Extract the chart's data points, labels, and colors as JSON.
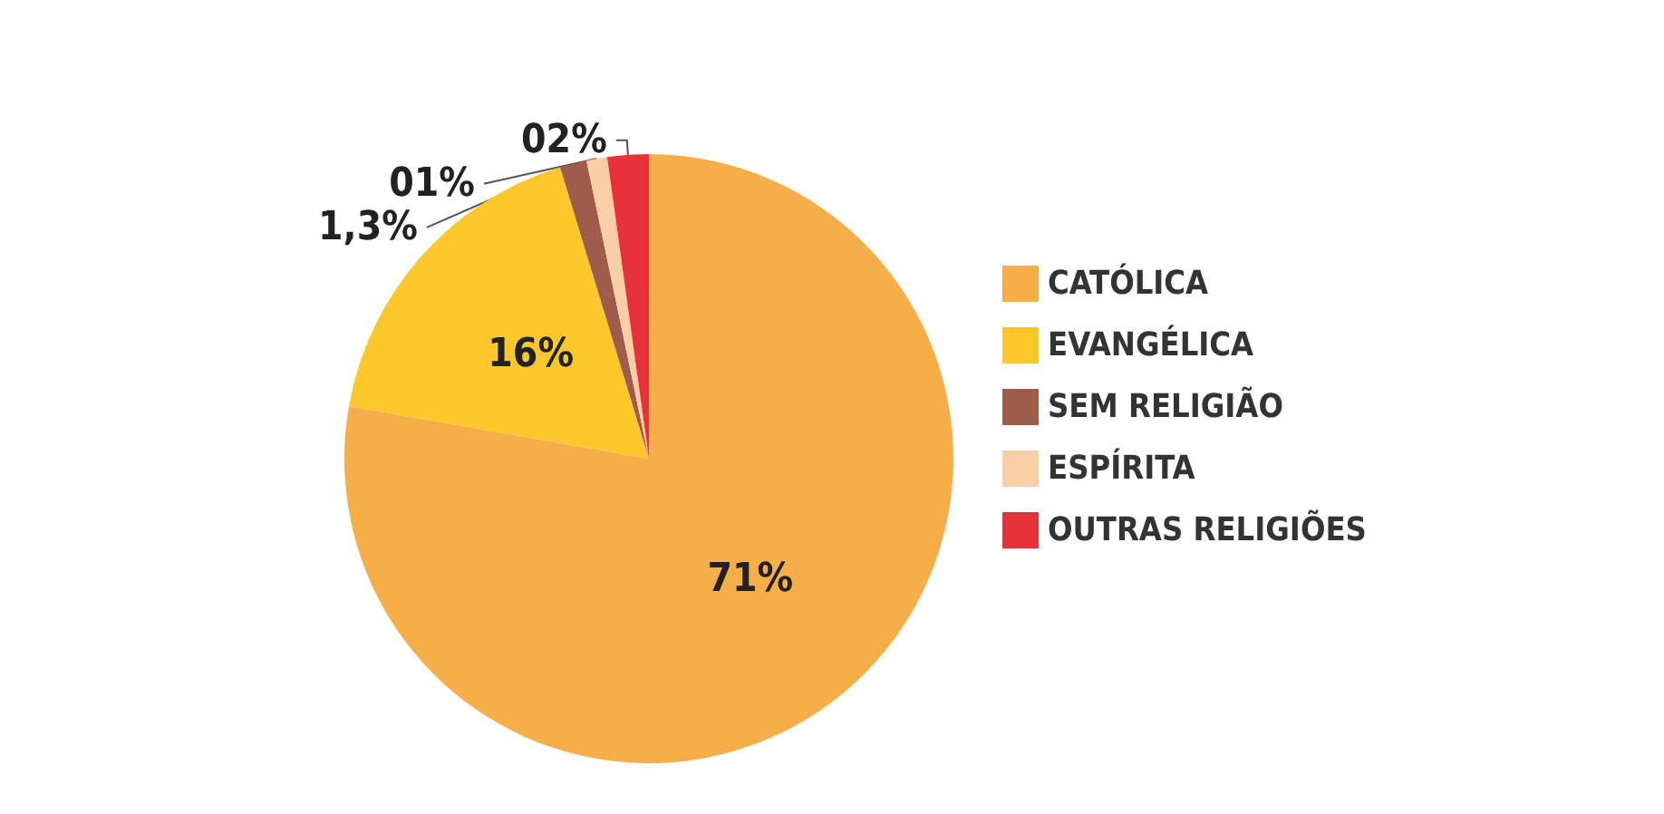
{
  "chart_data": {
    "type": "pie",
    "categories": [
      "CATÓLICA",
      "EVANGÉLICA",
      "SEM RELIGIÃO",
      "ESPÍRITA",
      "OUTRAS RELIGIÕES"
    ],
    "values": [
      71,
      16,
      1.3,
      1,
      2
    ],
    "colors": [
      "#f5ae48",
      "#fbc72b",
      "#a05c4a",
      "#f9cfa5",
      "#e8323a"
    ],
    "value_labels": [
      "71%",
      "16%",
      "1,3%",
      "01%",
      "02%"
    ],
    "legend": "right"
  }
}
